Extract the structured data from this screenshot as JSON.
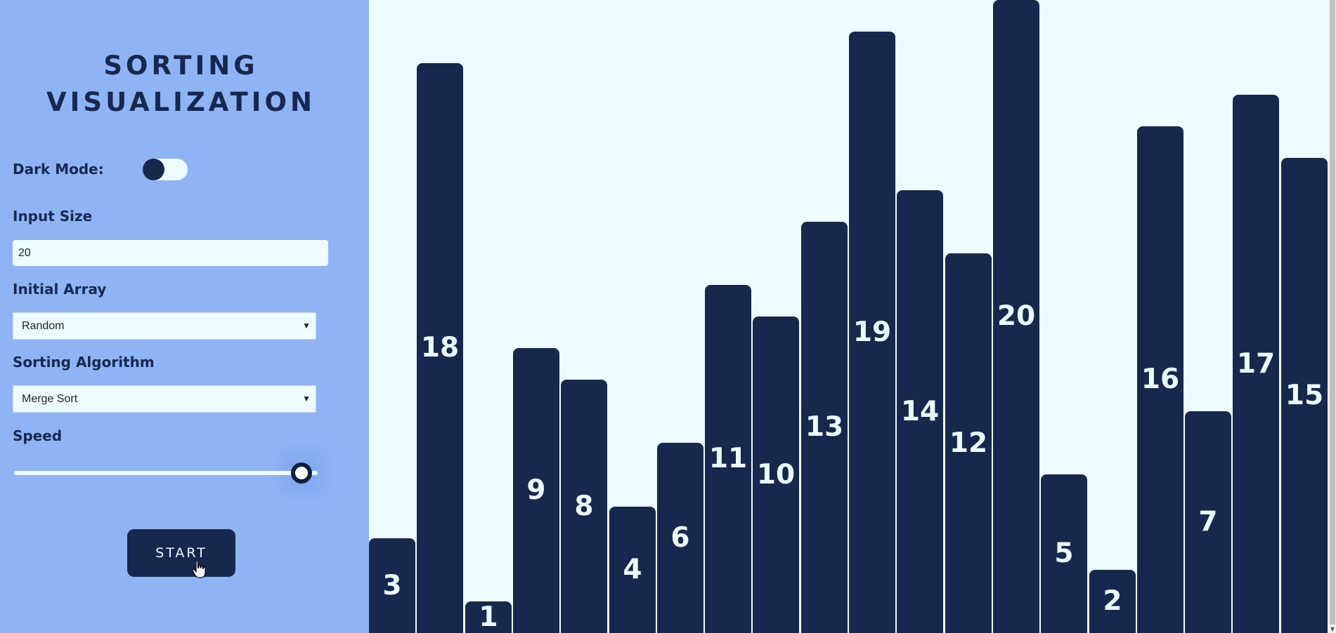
{
  "sidebar": {
    "title_line1": "SORTING",
    "title_line2": "VISUALIZATION",
    "dark_mode_label": "Dark Mode:",
    "dark_mode_on": false,
    "input_size_label": "Input Size",
    "input_size_value": "20",
    "initial_array_label": "Initial Array",
    "initial_array_value": "Random",
    "algorithm_label": "Sorting Algorithm",
    "algorithm_value": "Merge Sort",
    "speed_label": "Speed",
    "speed_value": 0.98,
    "start_label": "START"
  },
  "colors": {
    "sidebar_bg": "#8fb4f5",
    "chart_bg": "#ecfcff",
    "bar": "#17284e",
    "text": "#17284e"
  },
  "chart_data": {
    "type": "bar",
    "categories": [
      "1",
      "2",
      "3",
      "4",
      "5",
      "6",
      "7",
      "8",
      "9",
      "10",
      "11",
      "12",
      "13",
      "14",
      "15",
      "16",
      "17",
      "18",
      "19",
      "20"
    ],
    "values": [
      3,
      18,
      1,
      9,
      8,
      4,
      6,
      11,
      10,
      13,
      19,
      14,
      12,
      20,
      5,
      2,
      16,
      7,
      17,
      15
    ],
    "ylim": [
      0,
      20
    ],
    "grid": false,
    "legend": "none"
  }
}
